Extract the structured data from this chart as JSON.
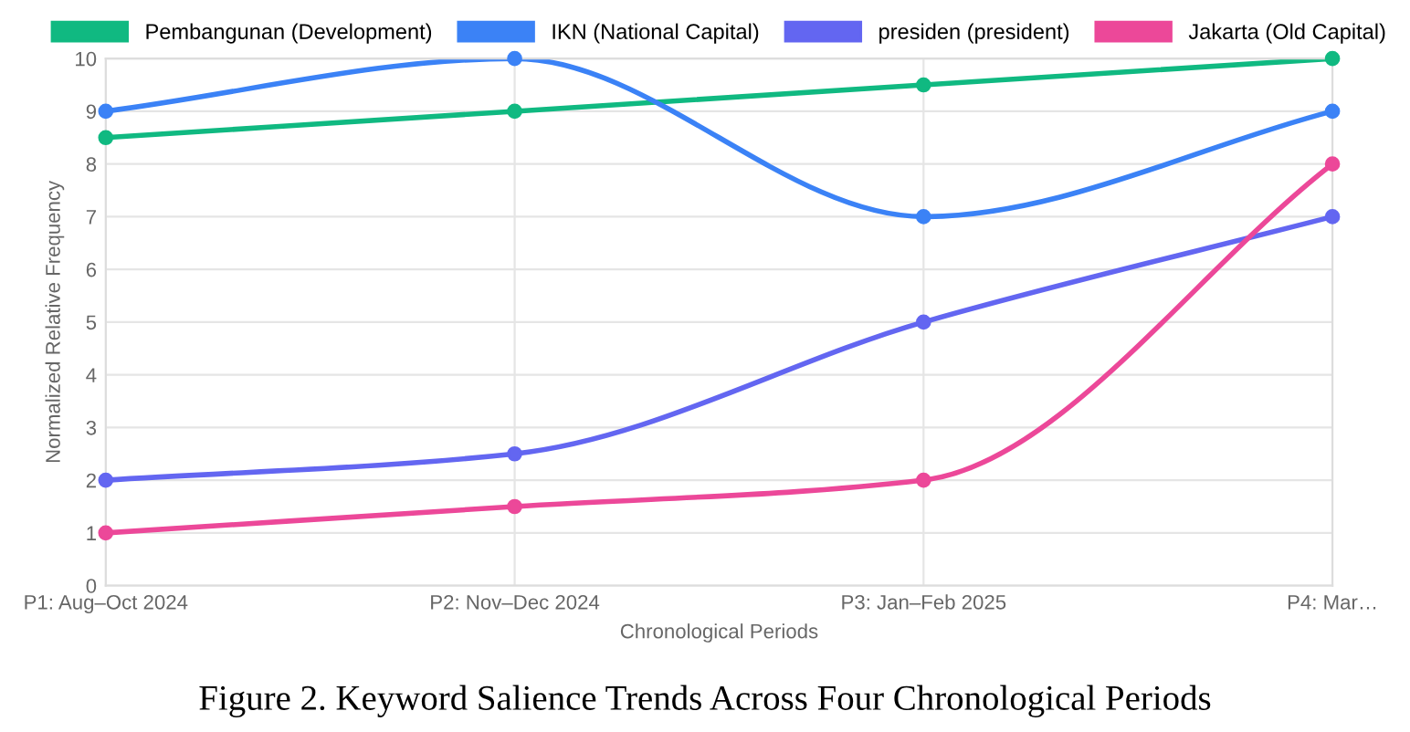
{
  "chart_data": {
    "type": "line",
    "categories": [
      "P1: Aug–Oct 2024",
      "P2: Nov–Dec 2024",
      "P3: Jan–Feb 2025",
      "P4: Mar…"
    ],
    "series": [
      {
        "name": "Pembangunan (Development)",
        "color": "#10b981",
        "values": [
          8.5,
          9,
          9.5,
          10
        ]
      },
      {
        "name": "IKN (National Capital)",
        "color": "#3b82f6",
        "values": [
          9,
          10,
          7,
          9
        ]
      },
      {
        "name": "presiden (president)",
        "color": "#6366f1",
        "values": [
          2,
          2.5,
          5,
          7
        ]
      },
      {
        "name": "Jakarta (Old Capital)",
        "color": "#ec4899",
        "values": [
          1,
          1.5,
          2,
          8
        ]
      }
    ],
    "xlabel": "Chronological Periods",
    "ylabel": "Normalized Relative Frequency",
    "ylim": [
      0,
      10
    ],
    "yticks": [
      0,
      1,
      2,
      3,
      4,
      5,
      6,
      7,
      8,
      9,
      10
    ],
    "grid": true,
    "legend": "top",
    "marker": "circle",
    "line_style": "solid",
    "annotations": [
      "Figure 2. Keyword Salience Trends Across Four Chronological Periods"
    ]
  }
}
